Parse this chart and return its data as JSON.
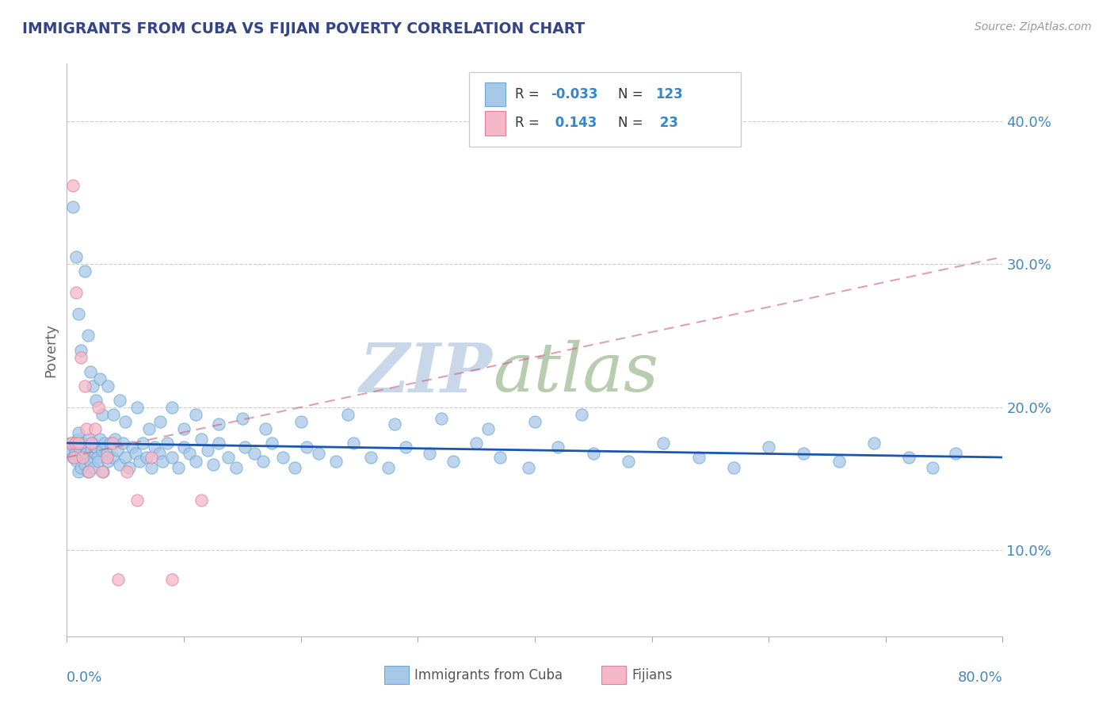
{
  "title": "IMMIGRANTS FROM CUBA VS FIJIAN POVERTY CORRELATION CHART",
  "source": "Source: ZipAtlas.com",
  "ylabel": "Poverty",
  "ytick_labels": [
    "10.0%",
    "20.0%",
    "30.0%",
    "40.0%"
  ],
  "ytick_values": [
    0.1,
    0.2,
    0.3,
    0.4
  ],
  "xlim": [
    0.0,
    0.8
  ],
  "ylim": [
    0.04,
    0.44
  ],
  "blue_color": "#a8c8e8",
  "blue_edge_color": "#6aaad4",
  "pink_color": "#f4b8c8",
  "pink_edge_color": "#e080a0",
  "blue_line_color": "#1a56b0",
  "pink_line_color": "#d06080",
  "background_color": "#ffffff",
  "grid_color": "#cccccc",
  "title_color": "#334488",
  "axis_label_color": "#4488bb",
  "ylabel_color": "#666666",
  "watermark_zip_color": "#c8d8e8",
  "watermark_atlas_color": "#b8ccb0",
  "blue_line_y_start": 0.175,
  "blue_line_y_end": 0.165,
  "pink_line_y_start": 0.165,
  "pink_line_y_end": 0.305,
  "cuba_x": [
    0.003,
    0.004,
    0.005,
    0.006,
    0.007,
    0.008,
    0.009,
    0.01,
    0.01,
    0.011,
    0.012,
    0.013,
    0.014,
    0.015,
    0.016,
    0.017,
    0.018,
    0.019,
    0.02,
    0.021,
    0.022,
    0.023,
    0.024,
    0.025,
    0.026,
    0.027,
    0.028,
    0.03,
    0.031,
    0.032,
    0.034,
    0.035,
    0.037,
    0.039,
    0.041,
    0.043,
    0.045,
    0.048,
    0.05,
    0.053,
    0.056,
    0.059,
    0.062,
    0.065,
    0.068,
    0.072,
    0.075,
    0.079,
    0.082,
    0.086,
    0.09,
    0.095,
    0.1,
    0.105,
    0.11,
    0.115,
    0.12,
    0.125,
    0.13,
    0.138,
    0.145,
    0.152,
    0.16,
    0.168,
    0.175,
    0.185,
    0.195,
    0.205,
    0.215,
    0.23,
    0.245,
    0.26,
    0.275,
    0.29,
    0.31,
    0.33,
    0.35,
    0.37,
    0.395,
    0.42,
    0.45,
    0.48,
    0.51,
    0.54,
    0.57,
    0.6,
    0.63,
    0.66,
    0.69,
    0.72,
    0.74,
    0.76,
    0.005,
    0.008,
    0.01,
    0.012,
    0.015,
    0.018,
    0.02,
    0.022,
    0.025,
    0.028,
    0.03,
    0.035,
    0.04,
    0.045,
    0.05,
    0.06,
    0.07,
    0.08,
    0.09,
    0.1,
    0.11,
    0.13,
    0.15,
    0.17,
    0.2,
    0.24,
    0.28,
    0.32,
    0.36,
    0.4,
    0.44
  ],
  "cuba_y": [
    0.175,
    0.17,
    0.165,
    0.172,
    0.168,
    0.163,
    0.178,
    0.155,
    0.182,
    0.17,
    0.158,
    0.175,
    0.165,
    0.16,
    0.172,
    0.168,
    0.155,
    0.178,
    0.162,
    0.17,
    0.175,
    0.158,
    0.168,
    0.172,
    0.165,
    0.162,
    0.178,
    0.17,
    0.155,
    0.175,
    0.168,
    0.162,
    0.175,
    0.165,
    0.178,
    0.17,
    0.16,
    0.175,
    0.165,
    0.158,
    0.172,
    0.168,
    0.162,
    0.175,
    0.165,
    0.158,
    0.172,
    0.168,
    0.162,
    0.175,
    0.165,
    0.158,
    0.172,
    0.168,
    0.162,
    0.178,
    0.17,
    0.16,
    0.175,
    0.165,
    0.158,
    0.172,
    0.168,
    0.162,
    0.175,
    0.165,
    0.158,
    0.172,
    0.168,
    0.162,
    0.175,
    0.165,
    0.158,
    0.172,
    0.168,
    0.162,
    0.175,
    0.165,
    0.158,
    0.172,
    0.168,
    0.162,
    0.175,
    0.165,
    0.158,
    0.172,
    0.168,
    0.162,
    0.175,
    0.165,
    0.158,
    0.168,
    0.34,
    0.305,
    0.265,
    0.24,
    0.295,
    0.25,
    0.225,
    0.215,
    0.205,
    0.22,
    0.195,
    0.215,
    0.195,
    0.205,
    0.19,
    0.2,
    0.185,
    0.19,
    0.2,
    0.185,
    0.195,
    0.188,
    0.192,
    0.185,
    0.19,
    0.195,
    0.188,
    0.192,
    0.185,
    0.19,
    0.195
  ],
  "fijian_x": [
    0.004,
    0.005,
    0.006,
    0.007,
    0.008,
    0.01,
    0.012,
    0.013,
    0.015,
    0.017,
    0.019,
    0.021,
    0.024,
    0.027,
    0.03,
    0.034,
    0.039,
    0.044,
    0.051,
    0.06,
    0.072,
    0.09,
    0.115
  ],
  "fijian_y": [
    0.175,
    0.355,
    0.165,
    0.175,
    0.28,
    0.175,
    0.235,
    0.165,
    0.215,
    0.185,
    0.155,
    0.175,
    0.185,
    0.2,
    0.155,
    0.165,
    0.175,
    0.08,
    0.155,
    0.135,
    0.165,
    0.08,
    0.135
  ]
}
